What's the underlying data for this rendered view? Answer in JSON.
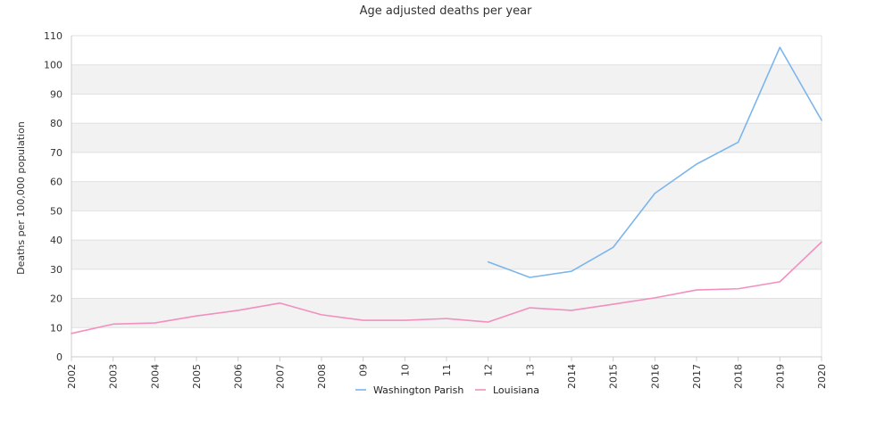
{
  "chart_data": {
    "type": "line",
    "title": "Age adjusted deaths per year",
    "xlabel": "",
    "ylabel": "Deaths per 100,000 population",
    "categories": [
      "2002",
      "2003",
      "2004",
      "2005",
      "2006",
      "2007",
      "2008",
      "09",
      "10",
      "11",
      "12",
      "13",
      "2014",
      "2015",
      "2016",
      "2017",
      "2018",
      "2019",
      "2020"
    ],
    "ylim": [
      0,
      110
    ],
    "yticks": [
      0,
      10,
      20,
      30,
      40,
      50,
      60,
      70,
      80,
      90,
      100,
      110
    ],
    "grid": "alternating horizontal bands",
    "legend_position": "bottom",
    "series": [
      {
        "name": "Washington Parish",
        "color": "#7cb5ec",
        "values": [
          null,
          null,
          null,
          null,
          null,
          null,
          null,
          null,
          null,
          null,
          32.5,
          27.2,
          29.3,
          37.5,
          56.0,
          66.0,
          73.5,
          106.0,
          81.0
        ]
      },
      {
        "name": "Louisiana",
        "color": "#f28fbf",
        "values": [
          8.0,
          11.2,
          11.6,
          14.0,
          15.9,
          18.4,
          14.4,
          12.5,
          12.5,
          13.1,
          11.9,
          16.8,
          15.9,
          18.0,
          20.2,
          22.9,
          23.3,
          25.7,
          39.3
        ]
      }
    ]
  }
}
